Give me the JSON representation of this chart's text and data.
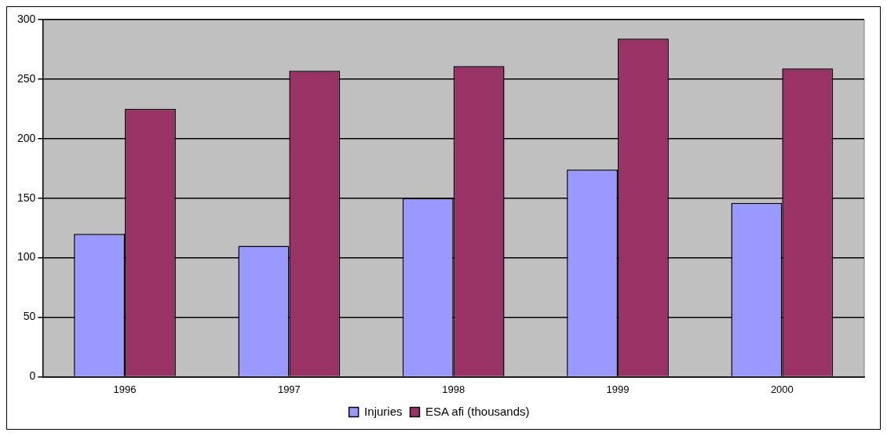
{
  "chart_data": {
    "type": "bar",
    "categories": [
      "1996",
      "1997",
      "1998",
      "1999",
      "2000"
    ],
    "series": [
      {
        "name": "Injuries",
        "color": "#9999ff",
        "values": [
          120,
          110,
          150,
          174,
          146
        ]
      },
      {
        "name": "ESA afi (thousands)",
        "color": "#993366",
        "values": [
          225,
          257,
          261,
          284,
          259
        ]
      }
    ],
    "ylim": [
      0,
      300
    ],
    "yticks": [
      0,
      50,
      100,
      150,
      200,
      250,
      300
    ],
    "grid": "y",
    "legend": "bottom"
  }
}
